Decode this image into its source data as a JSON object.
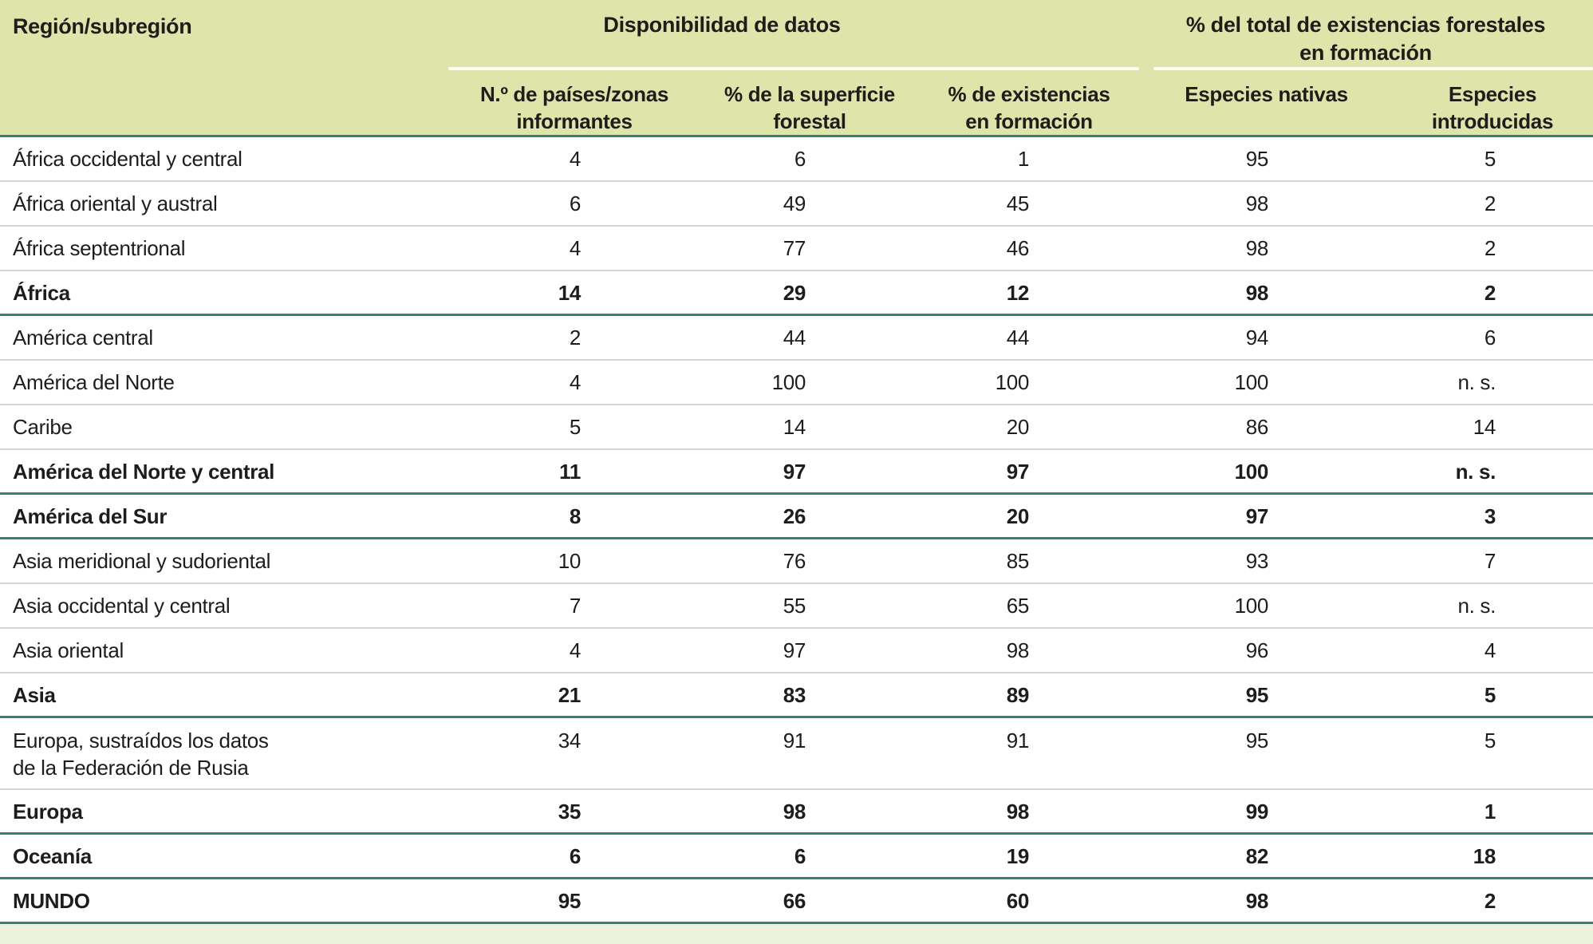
{
  "chart_data": {
    "type": "table",
    "title": "",
    "region_header": "Región/subregión",
    "groups": [
      {
        "label": "Disponibilidad de datos",
        "columns": [
          0,
          1,
          2
        ]
      },
      {
        "label": "% del total de existencias forestales\nen formación",
        "columns": [
          3,
          4
        ]
      }
    ],
    "columns": [
      "N.º de países/zonas\ninformantes",
      "% de la superficie\nforestal",
      "% de existencias\nen formación",
      "Especies nativas",
      "Especies\nintroducidas"
    ],
    "rows": [
      {
        "region": "África occidental y central",
        "values": [
          "4",
          "6",
          "1",
          "95",
          "5"
        ],
        "bold": false,
        "tall": false,
        "separator_after": "gray"
      },
      {
        "region": "África oriental y austral",
        "values": [
          "6",
          "49",
          "45",
          "98",
          "2"
        ],
        "bold": false,
        "tall": false,
        "separator_after": "gray"
      },
      {
        "region": "África septentrional",
        "values": [
          "4",
          "77",
          "46",
          "98",
          "2"
        ],
        "bold": false,
        "tall": false,
        "separator_after": "gray"
      },
      {
        "region": "África",
        "values": [
          "14",
          "29",
          "12",
          "98",
          "2"
        ],
        "bold": true,
        "tall": false,
        "separator_after": "teal"
      },
      {
        "region": "América central",
        "values": [
          "2",
          "44",
          "44",
          "94",
          "6"
        ],
        "bold": false,
        "tall": false,
        "separator_after": "gray"
      },
      {
        "region": "América del Norte",
        "values": [
          "4",
          "100",
          "100",
          "100",
          "n. s."
        ],
        "bold": false,
        "tall": false,
        "separator_after": "gray"
      },
      {
        "region": "Caribe",
        "values": [
          "5",
          "14",
          "20",
          "86",
          "14"
        ],
        "bold": false,
        "tall": false,
        "separator_after": "gray"
      },
      {
        "region": "América del Norte y central",
        "values": [
          "11",
          "97",
          "97",
          "100",
          "n. s."
        ],
        "bold": true,
        "tall": false,
        "separator_after": "teal"
      },
      {
        "region": "América del Sur",
        "values": [
          "8",
          "26",
          "20",
          "97",
          "3"
        ],
        "bold": true,
        "tall": false,
        "separator_after": "teal"
      },
      {
        "region": "Asia meridional y sudoriental",
        "values": [
          "10",
          "76",
          "85",
          "93",
          "7"
        ],
        "bold": false,
        "tall": false,
        "separator_after": "gray"
      },
      {
        "region": "Asia occidental y central",
        "values": [
          "7",
          "55",
          "65",
          "100",
          "n. s."
        ],
        "bold": false,
        "tall": false,
        "separator_after": "gray"
      },
      {
        "region": "Asia oriental",
        "values": [
          "4",
          "97",
          "98",
          "96",
          "4"
        ],
        "bold": false,
        "tall": false,
        "separator_after": "gray"
      },
      {
        "region": "Asia",
        "values": [
          "21",
          "83",
          "89",
          "95",
          "5"
        ],
        "bold": true,
        "tall": false,
        "separator_after": "teal"
      },
      {
        "region": "Europa, sustraídos los datos\nde la Federación de Rusia",
        "values": [
          "34",
          "91",
          "91",
          "95",
          "5"
        ],
        "bold": false,
        "tall": true,
        "separator_after": "gray"
      },
      {
        "region": "Europa",
        "values": [
          "35",
          "98",
          "98",
          "99",
          "1"
        ],
        "bold": true,
        "tall": false,
        "separator_after": "teal"
      },
      {
        "region": "Oceanía",
        "values": [
          "6",
          "6",
          "19",
          "82",
          "18"
        ],
        "bold": true,
        "tall": false,
        "separator_after": "teal"
      },
      {
        "region": "MUNDO",
        "values": [
          "95",
          "66",
          "60",
          "98",
          "2"
        ],
        "bold": true,
        "tall": false,
        "separator_after": "teal"
      }
    ],
    "colors": {
      "header_background": "#dfe4aa",
      "accent_teal_line": "#3b7e76",
      "row_separator_gray": "#d6d6d6",
      "footer_strip_green": "#ebf1da",
      "text": "#1d1d1b",
      "group_underline_white": "#fdfdf6"
    }
  }
}
